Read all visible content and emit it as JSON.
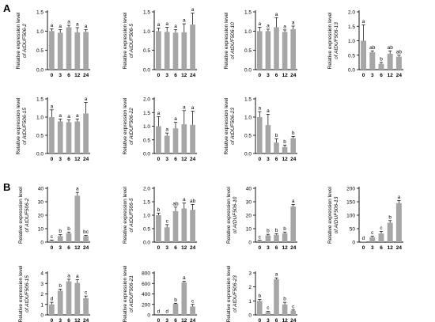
{
  "panels": [
    "A",
    "B"
  ],
  "ylabel_prefix": "Relative expression level",
  "chart_data": [
    {
      "type": "bar",
      "section": "A",
      "ylabel_gene": "of AtDUF506-2",
      "categories": [
        "0",
        "3",
        "6",
        "12",
        "24"
      ],
      "values": [
        1.0,
        0.96,
        1.1,
        0.97,
        0.98
      ],
      "errors": [
        0.06,
        0.08,
        0.05,
        0.12,
        0.06
      ],
      "letters": [
        "a",
        "a",
        "a",
        "a",
        "a"
      ],
      "ylim": [
        0,
        1.5
      ],
      "yticks": [
        "0.0",
        "0.5",
        "1.0",
        "1.5"
      ]
    },
    {
      "type": "bar",
      "section": "A",
      "ylabel_gene": "of AtDUF506-5",
      "categories": [
        "0",
        "3",
        "6",
        "12",
        "24"
      ],
      "values": [
        1.0,
        0.98,
        0.96,
        0.97,
        1.17
      ],
      "errors": [
        0.08,
        0.12,
        0.08,
        0.22,
        0.3
      ],
      "letters": [
        "a",
        "a",
        "a",
        "a",
        "a"
      ],
      "ylim": [
        0,
        1.5
      ],
      "yticks": [
        "0.0",
        "0.5",
        "1.0",
        "1.5"
      ]
    },
    {
      "type": "bar",
      "section": "A",
      "ylabel_gene": "of AtDUF506-10",
      "categories": [
        "0",
        "3",
        "6",
        "12",
        "24"
      ],
      "values": [
        1.0,
        1.0,
        1.1,
        0.98,
        1.05
      ],
      "errors": [
        0.1,
        0.05,
        0.25,
        0.05,
        0.08
      ],
      "letters": [
        "a",
        "a",
        "a",
        "a",
        "a"
      ],
      "ylim": [
        0,
        1.5
      ],
      "yticks": [
        "0.0",
        "0.5",
        "1.0",
        "1.5"
      ]
    },
    {
      "type": "bar",
      "section": "A",
      "ylabel_gene": "of AtDUF506-13",
      "categories": [
        "0",
        "3",
        "6",
        "12",
        "24"
      ],
      "values": [
        1.0,
        0.6,
        0.2,
        0.55,
        0.45
      ],
      "errors": [
        0.55,
        0.05,
        0.05,
        0.1,
        0.05
      ],
      "letters": [
        "a",
        "ab",
        "b",
        "ab",
        "ab"
      ],
      "ylim": [
        0,
        2
      ],
      "yticks": [
        "0.0",
        "0.5",
        "1.0",
        "1.5",
        "2.0"
      ]
    },
    {
      "type": "bar",
      "section": "A",
      "ylabel_gene": "of AtDUF506-15",
      "categories": [
        "0",
        "3",
        "6",
        "12",
        "24"
      ],
      "values": [
        1.0,
        0.88,
        0.86,
        0.88,
        1.1
      ],
      "errors": [
        0.2,
        0.07,
        0.06,
        0.07,
        0.3
      ],
      "letters": [
        "a",
        "a",
        "a",
        "a",
        "a"
      ],
      "ylim": [
        0,
        1.5
      ],
      "yticks": [
        "0.0",
        "0.5",
        "1.0",
        "1.5"
      ]
    },
    {
      "type": "bar",
      "section": "A",
      "ylabel_gene": "of AtDUF506-22",
      "categories": [
        "0",
        "3",
        "6",
        "12",
        "24"
      ],
      "values": [
        1.0,
        0.65,
        0.92,
        1.07,
        1.05
      ],
      "errors": [
        0.35,
        0.1,
        0.22,
        0.5,
        0.5
      ],
      "letters": [
        "a",
        "a",
        "a",
        "a",
        "a"
      ],
      "ylim": [
        0,
        2
      ],
      "yticks": [
        "0.0",
        "0.5",
        "1.0",
        "1.5",
        "2.0"
      ]
    },
    {
      "type": "bar",
      "section": "A",
      "ylabel_gene": "of AtDUF506-23",
      "categories": [
        "0",
        "3",
        "6",
        "12",
        "24"
      ],
      "values": [
        1.0,
        0.78,
        0.3,
        0.18,
        0.42
      ],
      "errors": [
        0.15,
        0.3,
        0.1,
        0.05,
        0.05
      ],
      "letters": [
        "a",
        "a",
        "b",
        "b",
        "b"
      ],
      "ylim": [
        0,
        1.5
      ],
      "yticks": [
        "0.0",
        "0.5",
        "1.0",
        "1.5"
      ]
    },
    {
      "type": "bar",
      "section": "B",
      "ylabel_gene": "of AtDUF506-2",
      "categories": [
        "0",
        "3",
        "6",
        "12",
        "24"
      ],
      "values": [
        1.0,
        4.5,
        6.5,
        34.5,
        4.5
      ],
      "errors": [
        0.5,
        1.0,
        1.0,
        2.5,
        0.5
      ],
      "letters": [
        "c",
        "b",
        "b",
        "a",
        "bc"
      ],
      "ylim": [
        0,
        40
      ],
      "yticks": [
        "0",
        "10",
        "20",
        "30",
        "40"
      ]
    },
    {
      "type": "bar",
      "section": "B",
      "ylabel_gene": "of AtDUF506-5",
      "categories": [
        "0",
        "3",
        "6",
        "12",
        "24"
      ],
      "values": [
        1.0,
        0.55,
        1.15,
        1.25,
        1.2
      ],
      "errors": [
        0.08,
        0.1,
        0.15,
        0.2,
        0.2
      ],
      "letters": [
        "b",
        "c",
        "ab",
        "a",
        "ab"
      ],
      "ylim": [
        0,
        2
      ],
      "yticks": [
        "0.0",
        "0.5",
        "1.0",
        "1.5",
        "2.0"
      ]
    },
    {
      "type": "bar",
      "section": "B",
      "ylabel_gene": "of AtDUF506-10",
      "categories": [
        "0",
        "3",
        "6",
        "12",
        "24"
      ],
      "values": [
        1.0,
        5.0,
        5.5,
        6.5,
        26.5
      ],
      "errors": [
        0.3,
        0.8,
        0.8,
        1.0,
        1.5
      ],
      "letters": [
        "c",
        "b",
        "b",
        "b",
        "a"
      ],
      "ylim": [
        0,
        40
      ],
      "yticks": [
        "0",
        "10",
        "20",
        "30",
        "40"
      ]
    },
    {
      "type": "bar",
      "section": "B",
      "ylabel_gene": "of AtDUF506-13",
      "categories": [
        "0",
        "3",
        "6",
        "12",
        "24"
      ],
      "values": [
        1,
        18,
        32,
        72,
        145
      ],
      "errors": [
        0,
        4,
        8,
        8,
        10
      ],
      "letters": [
        "d",
        "c",
        "c",
        "b",
        "a"
      ],
      "ylim": [
        0,
        200
      ],
      "yticks": [
        "0",
        "50",
        "100",
        "150",
        "200"
      ]
    },
    {
      "type": "bar",
      "section": "B",
      "ylabel_gene": "of AtDUF506-15",
      "categories": [
        "0",
        "3",
        "6",
        "12",
        "24"
      ],
      "values": [
        1.0,
        2.3,
        3.2,
        3.05,
        1.6
      ],
      "errors": [
        0.2,
        0.15,
        0.2,
        0.3,
        0.2
      ],
      "letters": [
        "d",
        "b",
        "a",
        "a",
        "c"
      ],
      "ylim": [
        0,
        4
      ],
      "yticks": [
        "0",
        "1",
        "2",
        "3",
        "4"
      ]
    },
    {
      "type": "bar",
      "section": "B",
      "ylabel_gene": "of AtDUF506-21",
      "categories": [
        "0",
        "3",
        "6",
        "12",
        "24"
      ],
      "values": [
        1,
        1,
        210,
        620,
        160
      ],
      "errors": [
        0,
        0,
        10,
        20,
        40
      ],
      "letters": [
        "d",
        "d",
        "b",
        "a",
        "c"
      ],
      "ylim": [
        0,
        800
      ],
      "yticks": [
        "0",
        "200",
        "400",
        "600",
        "800"
      ]
    },
    {
      "type": "bar",
      "section": "B",
      "ylabel_gene": "of AtDUF506-23",
      "categories": [
        "0",
        "3",
        "6",
        "12",
        "24"
      ],
      "values": [
        1.0,
        0.2,
        2.55,
        0.75,
        0.3
      ],
      "errors": [
        0.1,
        0.05,
        0.1,
        0.15,
        0.05
      ],
      "letters": [
        "b",
        "c",
        "a",
        "b",
        "c"
      ],
      "ylim": [
        0,
        3
      ],
      "yticks": [
        "0",
        "1",
        "2",
        "3"
      ]
    }
  ]
}
